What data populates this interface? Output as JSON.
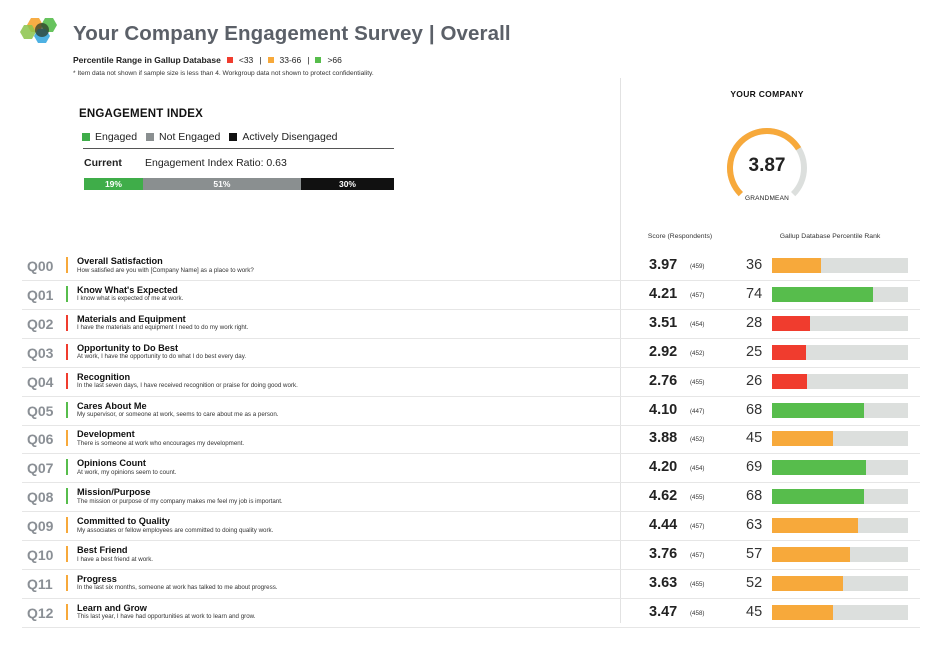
{
  "header": {
    "title": "Your Company Engagement Survey | Overall",
    "legend_title": "Percentile Range in Gallup Database",
    "legend": [
      {
        "label": "<33",
        "color": "#f03c2e"
      },
      {
        "label": "33-66",
        "color": "#f7a93b"
      },
      {
        "label": ">66",
        "color": "#57bd4c"
      }
    ],
    "note": "Item data not shown if sample size is less than 4. Workgroup data not shown to protect confidentiality."
  },
  "engagement_index": {
    "title": "ENGAGEMENT INDEX",
    "legend": [
      {
        "label": "Engaged",
        "color": "#3fad49"
      },
      {
        "label": "Not Engaged",
        "color": "#8a8f90"
      },
      {
        "label": "Actively Disengaged",
        "color": "#111111"
      }
    ],
    "current_label": "Current",
    "ratio_text": "Engagement Index Ratio:   0.63",
    "segments": [
      {
        "label": "19%",
        "value": 19,
        "color": "#3fad49"
      },
      {
        "label": "51%",
        "value": 51,
        "color": "#8a8f90"
      },
      {
        "label": "30%",
        "value": 30,
        "color": "#111111"
      }
    ]
  },
  "company": {
    "title": "YOUR COMPANY",
    "grandmean": "3.87",
    "grandmean_fraction": 0.717,
    "grandmean_label": "GRANDMEAN",
    "gauge_color": "#f7a93b"
  },
  "columns": {
    "score": "Score (Respondents)",
    "rank": "Gallup Database Percentile Rank"
  },
  "questions": [
    {
      "id": "Q00",
      "name": "Overall Satisfaction",
      "desc": "How satisfied are you with [Company Name] as a place to work?",
      "score": "3.97",
      "resp": "(459)",
      "rank": 36,
      "color": "#f7a93b"
    },
    {
      "id": "Q01",
      "name": "Know What's Expected",
      "desc": "I know what is expected of me at work.",
      "score": "4.21",
      "resp": "(457)",
      "rank": 74,
      "color": "#57bd4c"
    },
    {
      "id": "Q02",
      "name": "Materials and Equipment",
      "desc": "I have the materials and equipment I need to do my work right.",
      "score": "3.51",
      "resp": "(454)",
      "rank": 28,
      "color": "#f03c2e"
    },
    {
      "id": "Q03",
      "name": "Opportunity to Do Best",
      "desc": "At work, I have the opportunity to do what I do best every day.",
      "score": "2.92",
      "resp": "(452)",
      "rank": 25,
      "color": "#f03c2e"
    },
    {
      "id": "Q04",
      "name": "Recognition",
      "desc": "In the last seven days, I have received recognition or praise for doing good work.",
      "score": "2.76",
      "resp": "(455)",
      "rank": 26,
      "color": "#f03c2e"
    },
    {
      "id": "Q05",
      "name": "Cares About Me",
      "desc": "My supervisor, or someone at work, seems to care about me as a person.",
      "score": "4.10",
      "resp": "(447)",
      "rank": 68,
      "color": "#57bd4c"
    },
    {
      "id": "Q06",
      "name": "Development",
      "desc": "There is someone at work who encourages my development.",
      "score": "3.88",
      "resp": "(452)",
      "rank": 45,
      "color": "#f7a93b"
    },
    {
      "id": "Q07",
      "name": "Opinions Count",
      "desc": "At work, my opinions seem to count.",
      "score": "4.20",
      "resp": "(454)",
      "rank": 69,
      "color": "#57bd4c"
    },
    {
      "id": "Q08",
      "name": "Mission/Purpose",
      "desc": "The mission or purpose of my company makes me feel my job is important.",
      "score": "4.62",
      "resp": "(455)",
      "rank": 68,
      "color": "#57bd4c"
    },
    {
      "id": "Q09",
      "name": "Committed to Quality",
      "desc": "My associates or fellow employees are committed to doing quality work.",
      "score": "4.44",
      "resp": "(457)",
      "rank": 63,
      "color": "#f7a93b"
    },
    {
      "id": "Q10",
      "name": "Best Friend",
      "desc": "I have a best friend at work.",
      "score": "3.76",
      "resp": "(457)",
      "rank": 57,
      "color": "#f7a93b"
    },
    {
      "id": "Q11",
      "name": "Progress",
      "desc": "In the last six months, someone at work has talked to me about progress.",
      "score": "3.63",
      "resp": "(455)",
      "rank": 52,
      "color": "#f7a93b"
    },
    {
      "id": "Q12",
      "name": "Learn and Grow",
      "desc": "This last year, I have had opportunities at work to learn and grow.",
      "score": "3.47",
      "resp": "(458)",
      "rank": 45,
      "color": "#f7a93b"
    }
  ]
}
